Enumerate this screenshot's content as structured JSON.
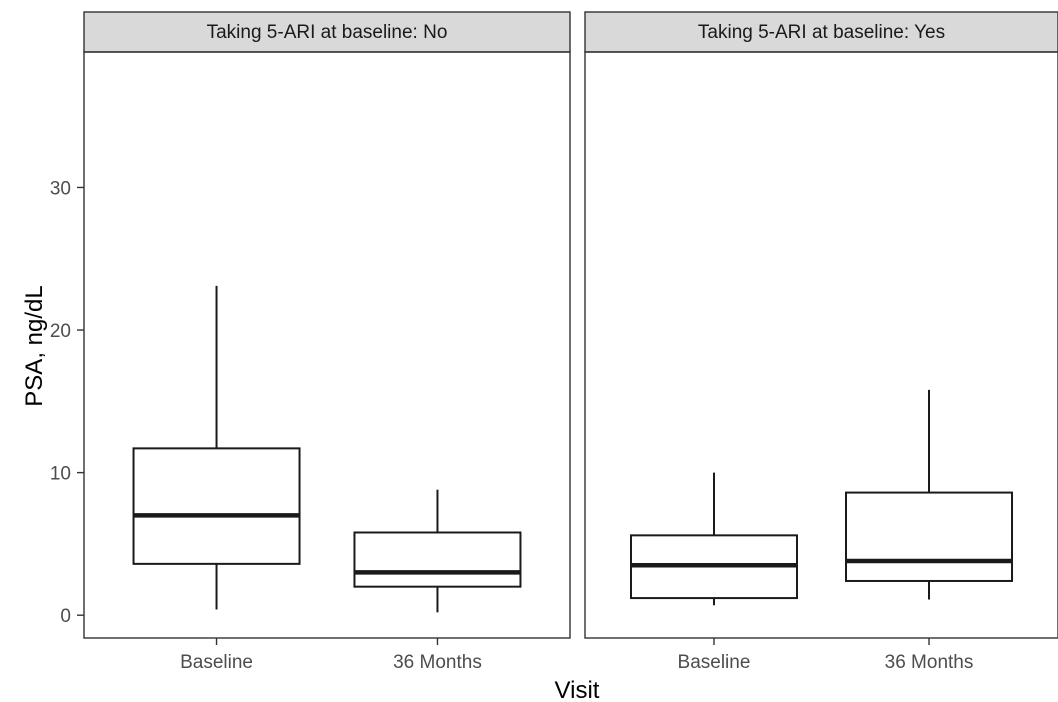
{
  "chart_data": {
    "type": "boxplot",
    "xlabel": "Visit",
    "ylabel": "PSA, ng/dL",
    "ylim": [
      -1.6,
      39.5
    ],
    "yticks": [
      0,
      10,
      20,
      30
    ],
    "categories": [
      "Baseline",
      "36 Months"
    ],
    "grid": false,
    "facets": [
      {
        "label": "Taking 5-ARI at baseline: No",
        "boxes": [
          {
            "category": "Baseline",
            "min": 0.4,
            "q1": 3.6,
            "median": 7.0,
            "q3": 11.7,
            "max": 23.1
          },
          {
            "category": "36 Months",
            "min": 0.2,
            "q1": 2.0,
            "median": 3.0,
            "q3": 5.8,
            "max": 8.8
          }
        ]
      },
      {
        "label": "Taking 5-ARI at baseline: Yes",
        "boxes": [
          {
            "category": "Baseline",
            "min": 0.7,
            "q1": 1.2,
            "median": 3.5,
            "q3": 5.6,
            "max": 10.0
          },
          {
            "category": "36 Months",
            "min": 1.1,
            "q1": 2.4,
            "median": 3.8,
            "q3": 8.6,
            "max": 15.8
          }
        ]
      }
    ]
  },
  "colors": {
    "strip_fill": "#d9d9d9",
    "panel_border": "#333333",
    "box_line": "#1a1a1a",
    "tick_text": "#4d4d4d",
    "title_text": "#000000"
  }
}
